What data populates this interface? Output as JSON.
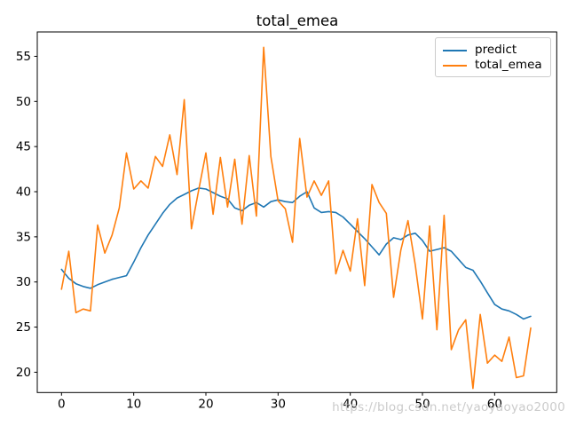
{
  "figure": {
    "title": "total_emea",
    "watermark": "https://blog.csdn.net/yaoyaoyao2000"
  },
  "legend": {
    "entries": [
      {
        "label": "predict",
        "color": "#1f77b4"
      },
      {
        "label": "total_emea",
        "color": "#ff7f0e"
      }
    ]
  },
  "chart_data": {
    "type": "line",
    "title": "total_emea",
    "xlabel": "",
    "ylabel": "",
    "xlim": [
      -3.36,
      68.6
    ],
    "ylim": [
      17.75,
      57.7
    ],
    "x_ticks": [
      0,
      10,
      20,
      30,
      40,
      50,
      60
    ],
    "y_ticks": [
      20,
      25,
      30,
      35,
      40,
      45,
      50,
      55
    ],
    "grid": false,
    "legend_position": "upper right",
    "x": [
      0,
      1,
      2,
      3,
      4,
      5,
      6,
      7,
      8,
      9,
      10,
      11,
      12,
      13,
      14,
      15,
      16,
      17,
      18,
      19,
      20,
      21,
      22,
      23,
      24,
      25,
      26,
      27,
      28,
      29,
      30,
      31,
      32,
      33,
      34,
      35,
      36,
      37,
      38,
      39,
      40,
      41,
      42,
      43,
      44,
      45,
      46,
      47,
      48,
      49,
      50,
      51,
      52,
      53,
      54,
      55,
      56,
      57,
      58,
      59,
      60,
      61,
      62,
      63,
      64,
      65
    ],
    "series": [
      {
        "name": "predict",
        "color": "#1f77b4",
        "values": [
          31.4,
          30.4,
          29.8,
          29.5,
          29.3,
          29.7,
          30.0,
          30.3,
          30.5,
          30.7,
          32.2,
          33.8,
          35.2,
          36.4,
          37.6,
          38.6,
          39.3,
          39.7,
          40.1,
          40.4,
          40.3,
          39.9,
          39.5,
          39.2,
          38.2,
          37.9,
          38.5,
          38.8,
          38.3,
          38.9,
          39.1,
          38.9,
          38.8,
          39.5,
          40.0,
          38.2,
          37.7,
          37.8,
          37.7,
          37.2,
          36.4,
          35.6,
          34.8,
          33.9,
          33.0,
          34.2,
          34.9,
          34.7,
          35.2,
          35.4,
          34.6,
          33.4,
          33.6,
          33.8,
          33.4,
          32.5,
          31.6,
          31.3,
          30.1,
          28.8,
          27.5,
          27.0,
          26.8,
          26.4,
          25.9,
          26.2
        ]
      },
      {
        "name": "total_emea",
        "color": "#ff7f0e",
        "values": [
          29.2,
          33.4,
          26.6,
          27.0,
          26.8,
          36.3,
          33.2,
          35.2,
          38.2,
          44.3,
          40.3,
          41.2,
          40.4,
          43.9,
          42.8,
          46.3,
          41.9,
          50.2,
          35.9,
          40.2,
          44.3,
          37.5,
          43.8,
          38.3,
          43.6,
          36.4,
          44.0,
          37.3,
          56.0,
          43.9,
          39.0,
          38.1,
          34.4,
          45.9,
          39.4,
          41.2,
          39.6,
          41.2,
          30.9,
          33.5,
          31.2,
          37.0,
          29.6,
          40.8,
          38.8,
          37.6,
          28.3,
          33.5,
          36.8,
          31.9,
          25.9,
          36.2,
          24.7,
          37.4,
          22.5,
          24.7,
          25.8,
          18.2,
          26.4,
          21.0,
          21.9,
          21.2,
          23.9,
          19.4,
          19.6,
          24.9
        ]
      }
    ]
  }
}
